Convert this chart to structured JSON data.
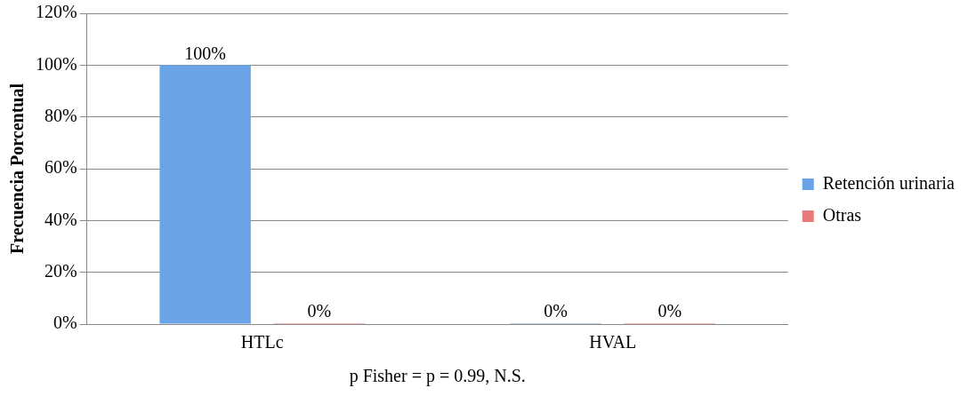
{
  "chart_data": {
    "type": "bar",
    "xlabel": "p Fisher = p = 0.99, N.S.",
    "ylabel": "Frecuencia Porcentual",
    "categories": [
      "HTLc",
      "HVAL"
    ],
    "series": [
      {
        "name": "Retención urinaria",
        "color": "#6aa3e6",
        "values": [
          100,
          0
        ],
        "value_labels": [
          "100%",
          "0%"
        ]
      },
      {
        "name": "Otras",
        "color": "#e87a7a",
        "values": [
          0,
          0
        ],
        "value_labels": [
          "0%",
          "0%"
        ]
      }
    ],
    "ylim": [
      0,
      120
    ],
    "yticks": [
      {
        "value": 0,
        "label": "0%"
      },
      {
        "value": 20,
        "label": "20%"
      },
      {
        "value": 40,
        "label": "40%"
      },
      {
        "value": 60,
        "label": "60%"
      },
      {
        "value": 80,
        "label": "80%"
      },
      {
        "value": 100,
        "label": "100%"
      },
      {
        "value": 120,
        "label": "120%"
      }
    ],
    "grid": "y",
    "legend": "right"
  }
}
